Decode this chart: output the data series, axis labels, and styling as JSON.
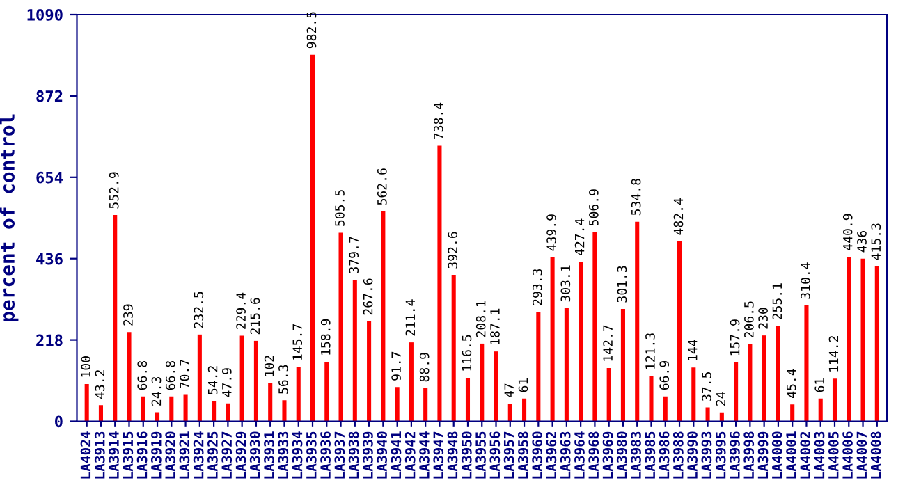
{
  "chart_data": {
    "type": "bar",
    "ylabel": "percent of control",
    "categories": [
      "LA4024",
      "LA3913",
      "LA3914",
      "LA3915",
      "LA3916",
      "LA3919",
      "LA3920",
      "LA3921",
      "LA3924",
      "LA3925",
      "LA3927",
      "LA3929",
      "LA3930",
      "LA3931",
      "LA3933",
      "LA3934",
      "LA3935",
      "LA3936",
      "LA3937",
      "LA3938",
      "LA3939",
      "LA3940",
      "LA3941",
      "LA3942",
      "LA3944",
      "LA3947",
      "LA3948",
      "LA3950",
      "LA3955",
      "LA3956",
      "LA3957",
      "LA3958",
      "LA3960",
      "LA3962",
      "LA3963",
      "LA3964",
      "LA3968",
      "LA3969",
      "LA3980",
      "LA3983",
      "LA3985",
      "LA3986",
      "LA3988",
      "LA3990",
      "LA3993",
      "LA3995",
      "LA3996",
      "LA3998",
      "LA3999",
      "LA4000",
      "LA4001",
      "LA4002",
      "LA4003",
      "LA4005",
      "LA4006",
      "LA4007",
      "LA4008"
    ],
    "values": [
      100,
      43.2,
      552.9,
      239,
      66.8,
      24.3,
      66.8,
      70.7,
      232.5,
      54.2,
      47.9,
      229.4,
      215.6,
      102,
      56.3,
      145.7,
      982.5,
      158.9,
      505.5,
      379.7,
      267.6,
      562.6,
      91.7,
      211.4,
      88.9,
      738.4,
      392.6,
      116.5,
      208.1,
      187.1,
      47,
      61,
      293.3,
      439.9,
      303.1,
      427.4,
      506.9,
      142.7,
      301.3,
      534.8,
      121.3,
      66.9,
      482.4,
      144,
      37.5,
      24,
      157.9,
      206.5,
      230,
      255.1,
      45.4,
      310.4,
      61,
      114.2,
      440.9,
      436,
      415.3
    ],
    "color": "#ff0000",
    "ylim": [
      0,
      1090
    ],
    "yticks": [
      0,
      218,
      436,
      654,
      872,
      1090
    ],
    "data_labels": true,
    "grid": false,
    "legend": false
  }
}
